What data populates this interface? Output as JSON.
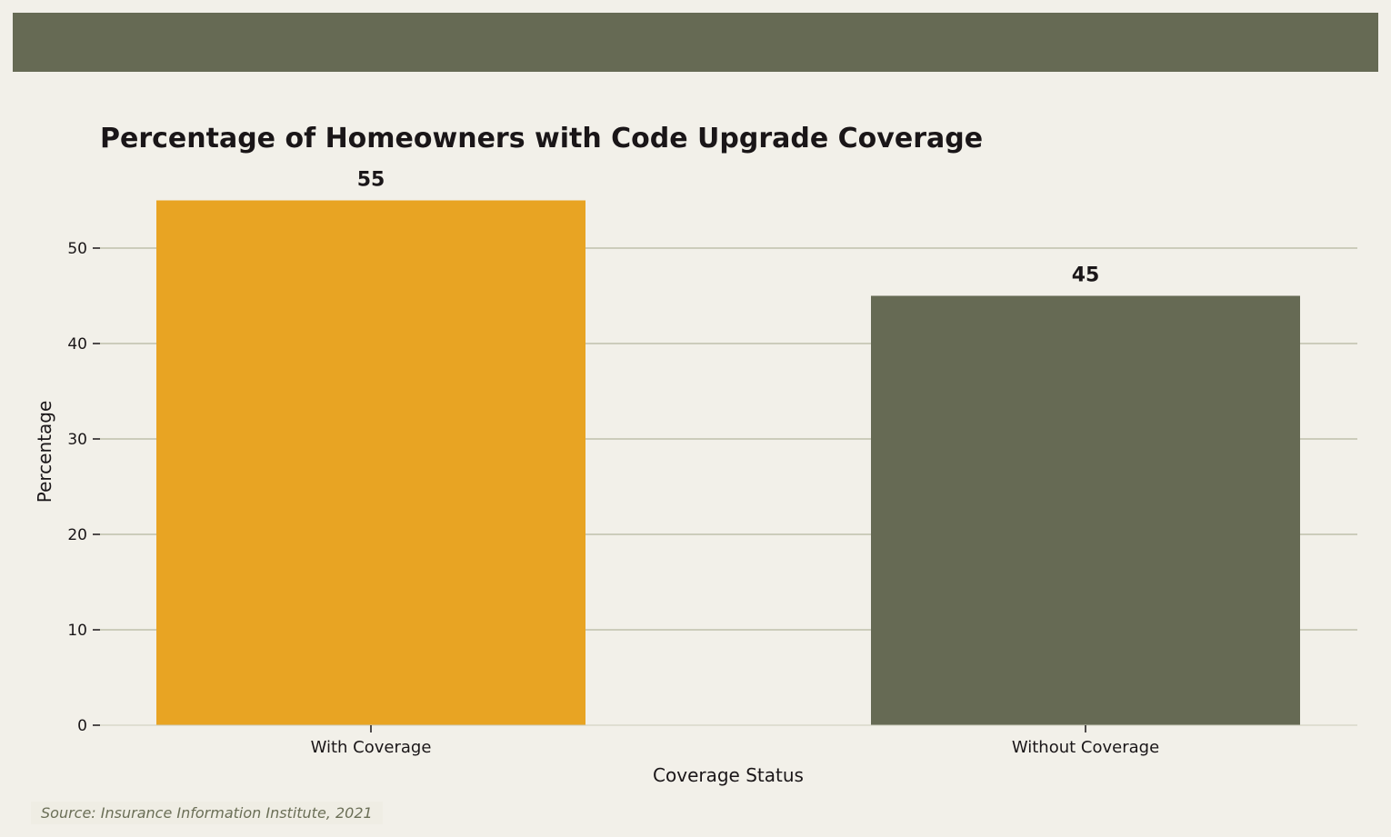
{
  "colors": {
    "band": "#666a54",
    "grid": "#ccccbb",
    "text": "#1a1618",
    "source_text": "#6b6f57"
  },
  "chart_data": {
    "type": "bar",
    "title": "Percentage of Homeowners with Code Upgrade Coverage",
    "xlabel": "Coverage Status",
    "ylabel": "Percentage",
    "categories": [
      "With Coverage",
      "Without Coverage"
    ],
    "values": [
      55,
      45
    ],
    "bar_colors": [
      "#e8a423",
      "#666a54"
    ],
    "data_labels": [
      "55",
      "45"
    ],
    "ylim": [
      0,
      60
    ],
    "yticks": [
      0,
      10,
      20,
      30,
      40,
      50
    ],
    "grid": "y",
    "legend": "none"
  },
  "source": "Source: Insurance Information Institute, 2021"
}
